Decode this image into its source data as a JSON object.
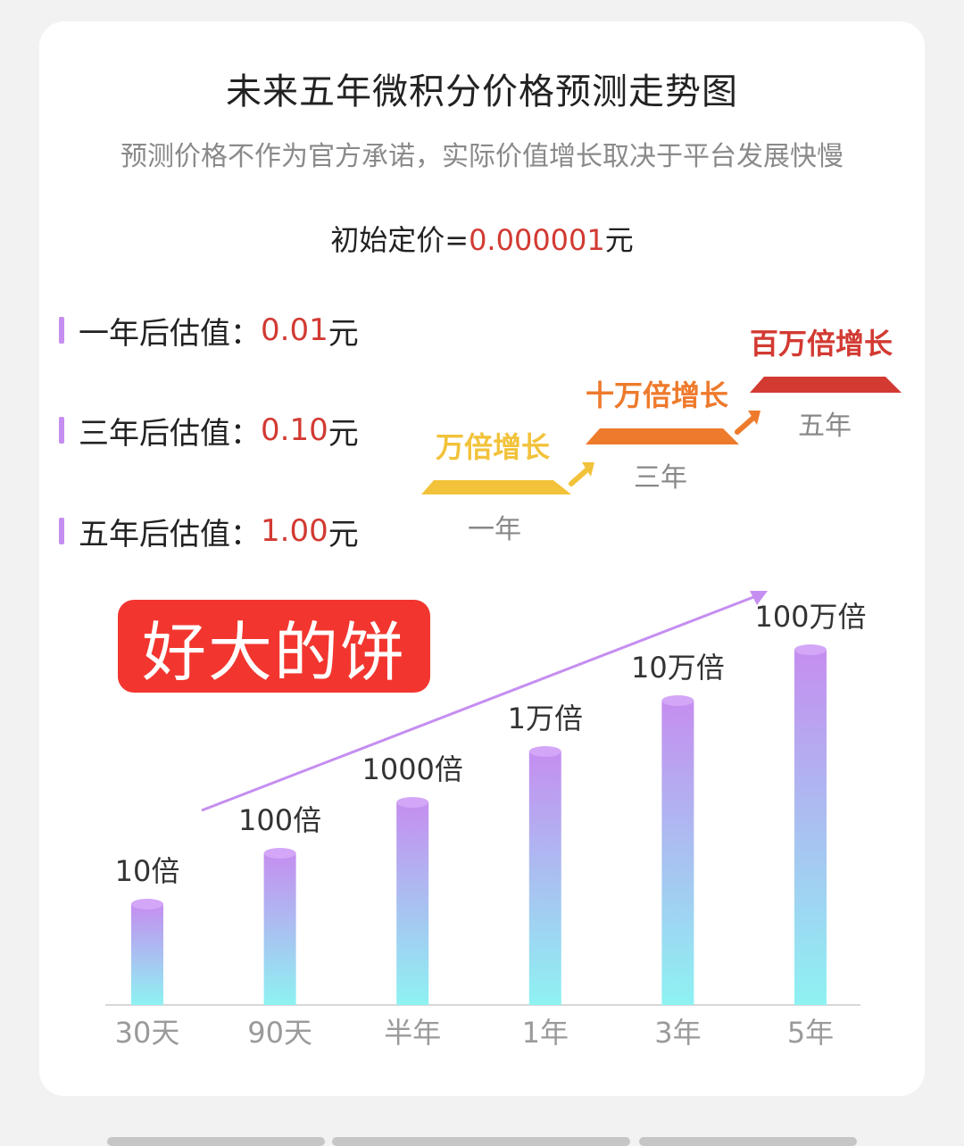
{
  "title": "未来五年微积分价格预测走势图",
  "subtitle": "预测价格不作为官方承诺，实际价值增长取决于平台发展快慢",
  "initial_price": {
    "label": "初始定价=",
    "value": "0.000001",
    "unit": "元"
  },
  "estimates": [
    {
      "label": "一年后估值：",
      "value": "0.01",
      "unit": "元"
    },
    {
      "label": "三年后估值：",
      "value": "0.10",
      "unit": "元"
    },
    {
      "label": "五年后估值：",
      "value": "1.00",
      "unit": "元"
    }
  ],
  "steps": [
    {
      "label": "万倍增长",
      "year": "一年",
      "color": "#f2c23a"
    },
    {
      "label": "十万倍增长",
      "year": "三年",
      "color": "#ee7a2c"
    },
    {
      "label": "百万倍增长",
      "year": "五年",
      "color": "#d23a32"
    }
  ],
  "badge": "好大的饼",
  "colors": {
    "accent_red": "#d23a32",
    "bar_top": "#c58ef0",
    "bar_bottom": "#8ef2f2",
    "arrow": "#c58ef0"
  },
  "chart_data": {
    "type": "bar",
    "categories": [
      "30天",
      "90天",
      "半年",
      "1年",
      "3年",
      "5年"
    ],
    "values": [
      1,
      2,
      3,
      4,
      5,
      6
    ],
    "data_labels": [
      "10倍",
      "100倍",
      "1000倍",
      "1万倍",
      "10万倍",
      "100万倍"
    ],
    "ylim": [
      0,
      6
    ],
    "grid": false,
    "legend": "none",
    "title": "",
    "xlabel": "",
    "ylabel": ""
  }
}
